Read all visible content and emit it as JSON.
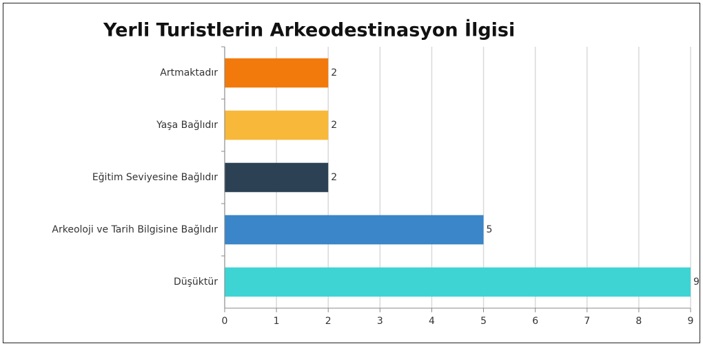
{
  "chart_data": {
    "type": "bar",
    "orientation": "horizontal",
    "title": "Yerli Turistlerin Arkeodestinasyon İlgisi",
    "categories": [
      "Artmaktadır",
      "Yaşa Bağlıdır",
      "Eğitim Seviyesine Bağlıdır",
      "Arkeoloji ve Tarih Bilgisine Bağlıdır",
      "Düşüktür"
    ],
    "values": [
      2,
      2,
      2,
      5,
      9
    ],
    "colors": [
      "#f27a0c",
      "#f8b83a",
      "#2d4154",
      "#3a86c8",
      "#3fd4d4"
    ],
    "xlim": [
      0,
      9
    ],
    "xticks": [
      0,
      1,
      2,
      3,
      4,
      5,
      6,
      7,
      8,
      9
    ],
    "grid": true
  }
}
